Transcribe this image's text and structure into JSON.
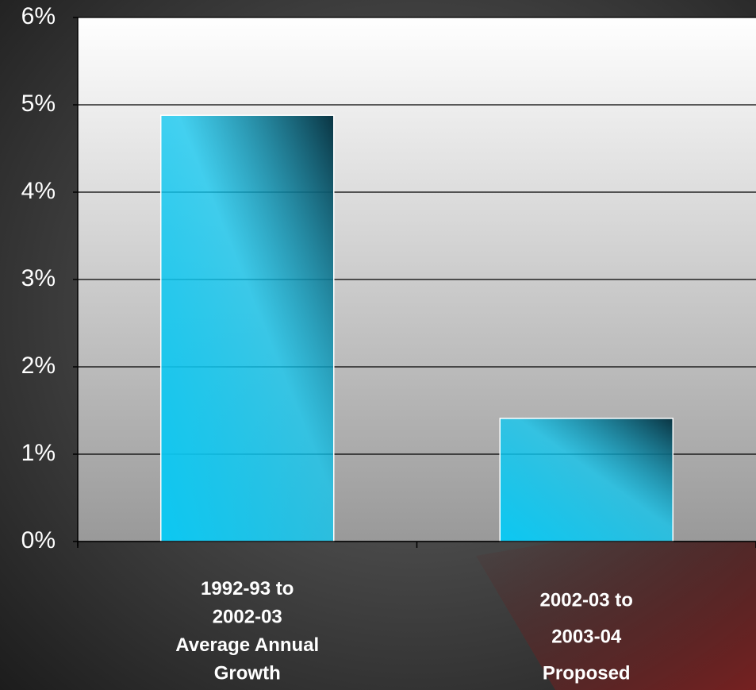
{
  "chart_data": {
    "type": "bar",
    "categories": [
      [
        "1992-93 to",
        "2002-03",
        "Average Annual",
        "Growth"
      ],
      [
        "2002-03 to",
        "2003-04",
        "Proposed"
      ]
    ],
    "values": [
      4.88,
      1.41
    ],
    "color": "#0cc8f2",
    "ylim": [
      0,
      6
    ],
    "yticks": [
      {
        "value": 0,
        "label": "0%"
      },
      {
        "value": 1,
        "label": "1%"
      },
      {
        "value": 2,
        "label": "2%"
      },
      {
        "value": 3,
        "label": "3%"
      },
      {
        "value": 4,
        "label": "4%"
      },
      {
        "value": 5,
        "label": "5%"
      },
      {
        "value": 6,
        "label": "6%"
      }
    ],
    "grid": true
  }
}
